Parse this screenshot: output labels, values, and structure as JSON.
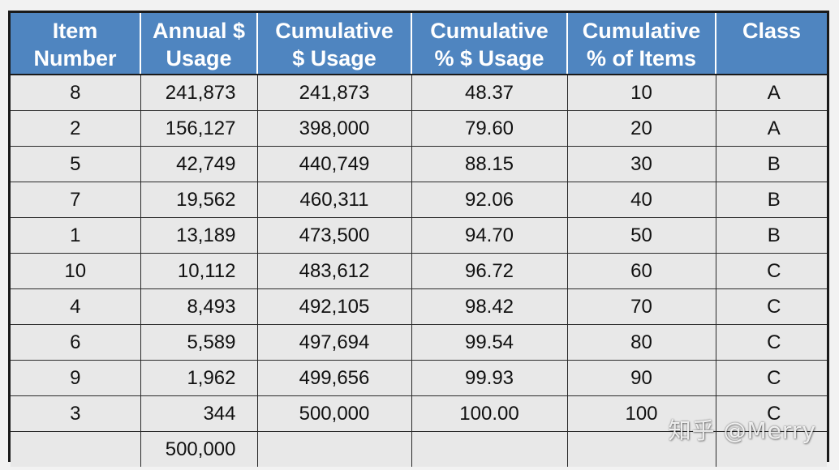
{
  "table": {
    "headers": [
      [
        "Item",
        "Number"
      ],
      [
        "Annual $",
        "Usage"
      ],
      [
        "Cumulative",
        "$ Usage"
      ],
      [
        "Cumulative",
        "% $ Usage"
      ],
      [
        "Cumulative",
        "% of Items"
      ],
      [
        "Class"
      ]
    ],
    "rows": [
      [
        "8",
        "241,873",
        "241,873",
        "48.37",
        "10",
        "A"
      ],
      [
        "2",
        "156,127",
        "398,000",
        "79.60",
        "20",
        "A"
      ],
      [
        "5",
        "42,749",
        "440,749",
        "88.15",
        "30",
        "B"
      ],
      [
        "7",
        "19,562",
        "460,311",
        "92.06",
        "40",
        "B"
      ],
      [
        "1",
        "13,189",
        "473,500",
        "94.70",
        "50",
        "B"
      ],
      [
        "10",
        "10,112",
        "483,612",
        "96.72",
        "60",
        "C"
      ],
      [
        "4",
        "8,493",
        "492,105",
        "98.42",
        "70",
        "C"
      ],
      [
        "6",
        "5,589",
        "497,694",
        "99.54",
        "80",
        "C"
      ],
      [
        "9",
        "1,962",
        "499,656",
        "99.93",
        "90",
        "C"
      ],
      [
        "3",
        "344",
        "500,000",
        "100.00",
        "100",
        "C"
      ]
    ],
    "total_row": [
      "",
      "500,000",
      "",
      "",
      "",
      ""
    ]
  },
  "watermark": "知乎 @Merry",
  "colors": {
    "header_bg": "#4f85c0",
    "header_text": "#ffffff",
    "cell_bg": "#e8e8e8",
    "border": "#1a1a1a"
  }
}
